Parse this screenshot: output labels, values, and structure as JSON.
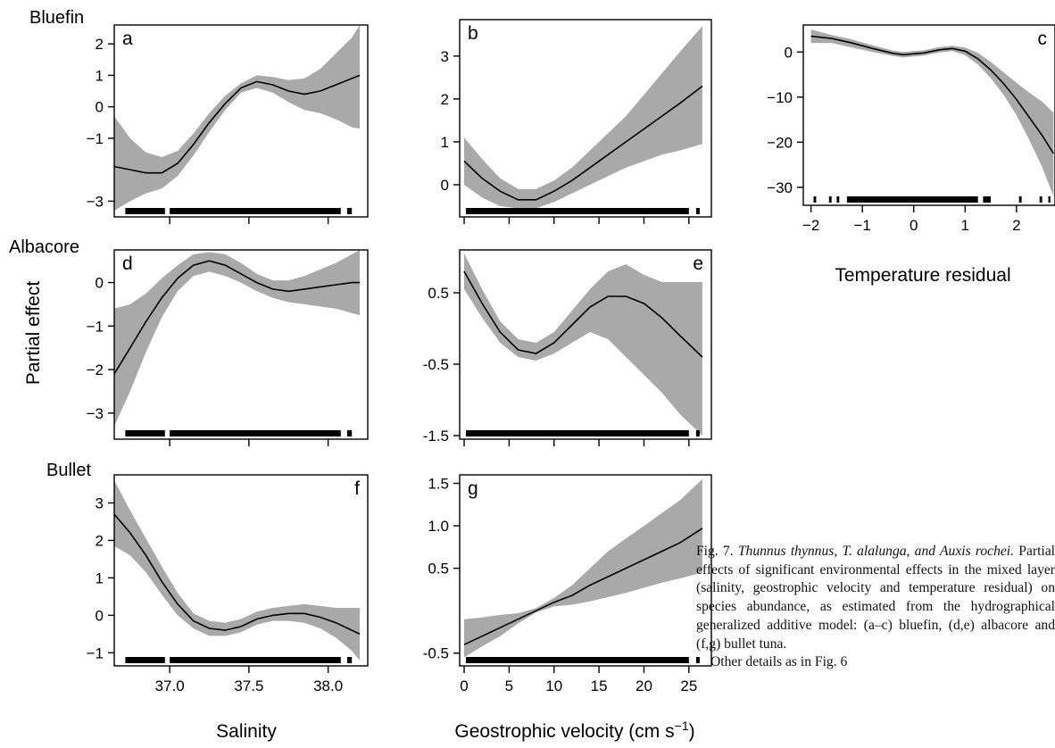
{
  "species_labels": {
    "bluefin": "Bluefin",
    "albacore": "Albacore",
    "bullet": "Bullet"
  },
  "shared_ylabel": "Partial effect",
  "x_axis_titles": {
    "salinity": "Salinity",
    "velocity_text": "Geostrophic velocity (cm s",
    "velocity_exp": "−1",
    "velocity_close": ")",
    "temperature": "Temperature residual"
  },
  "caption": {
    "fig_label": "Fig. 7. ",
    "species_names": "Thunnus thynnus, T. alalunga, and Auxis rochei.",
    "body": " Partial effects of significant environmental effects in the mixed layer (salinity, geostrophic velocity and temperature residual) on species abundance, as estimated from the hydrographical generalized additive model: (a–c) bluefin, (d,e) albacore and (f,g) bullet tuna.",
    "last_line": "Other details as in Fig. 6"
  },
  "colors": {
    "band": "#a9a9a9",
    "line": "#000000",
    "frame": "#000000"
  },
  "chart_data": [
    {
      "panel": "a",
      "type": "line",
      "species": "Bluefin",
      "variable": "Salinity",
      "xlim": [
        36.65,
        38.25
      ],
      "ylim": [
        -3.5,
        2.6
      ],
      "xticks": [
        37.0,
        37.5,
        38.0
      ],
      "xtick_labels": [],
      "yticks": [
        2,
        1,
        0,
        -1,
        -3
      ],
      "ytick_labels": [
        "2",
        "1",
        "0",
        "−1",
        "−3"
      ],
      "x": [
        36.65,
        36.75,
        36.85,
        36.95,
        37.05,
        37.15,
        37.25,
        37.35,
        37.45,
        37.55,
        37.65,
        37.75,
        37.85,
        37.95,
        38.05,
        38.15,
        38.2
      ],
      "fit": [
        -1.9,
        -2.0,
        -2.1,
        -2.1,
        -1.8,
        -1.2,
        -0.5,
        0.1,
        0.6,
        0.8,
        0.7,
        0.5,
        0.4,
        0.5,
        0.7,
        0.9,
        1.0
      ],
      "lower": [
        -3.3,
        -3.0,
        -2.75,
        -2.6,
        -2.2,
        -1.55,
        -0.8,
        -0.1,
        0.45,
        0.6,
        0.45,
        0.15,
        -0.1,
        -0.2,
        -0.4,
        -0.65,
        -0.7
      ],
      "upper": [
        -0.3,
        -1.0,
        -1.45,
        -1.6,
        -1.4,
        -0.85,
        -0.2,
        0.35,
        0.75,
        1.0,
        0.95,
        0.85,
        0.9,
        1.2,
        1.7,
        2.2,
        2.6
      ],
      "rug_segments": [
        [
          36.72,
          36.97
        ],
        [
          37.0,
          38.08
        ],
        [
          38.12,
          38.15
        ]
      ]
    },
    {
      "panel": "b",
      "type": "line",
      "species": "Bluefin",
      "variable": "Geostrophic velocity",
      "xlim": [
        -0.5,
        27.5
      ],
      "ylim": [
        -0.75,
        3.85
      ],
      "xticks": [
        0,
        5,
        10,
        15,
        20,
        25
      ],
      "xtick_labels": [],
      "yticks": [
        3,
        2,
        1,
        0
      ],
      "ytick_labels": [
        "3",
        "2",
        "1",
        "0"
      ],
      "x": [
        0,
        2,
        4,
        6,
        8,
        10,
        12,
        14,
        16,
        18,
        20,
        22,
        24,
        26.5
      ],
      "fit": [
        0.55,
        0.15,
        -0.15,
        -0.35,
        -0.35,
        -0.15,
        0.1,
        0.4,
        0.7,
        1.0,
        1.3,
        1.6,
        1.9,
        2.3
      ],
      "lower": [
        0.0,
        -0.3,
        -0.5,
        -0.55,
        -0.55,
        -0.4,
        -0.2,
        0.0,
        0.2,
        0.4,
        0.55,
        0.7,
        0.8,
        0.95
      ],
      "upper": [
        1.1,
        0.6,
        0.15,
        -0.1,
        -0.1,
        0.1,
        0.4,
        0.8,
        1.2,
        1.6,
        2.1,
        2.6,
        3.1,
        3.7
      ],
      "rug_segments": [
        [
          0.2,
          25.0
        ],
        [
          25.8,
          26.2
        ]
      ]
    },
    {
      "panel": "c",
      "type": "line",
      "species": "Bluefin",
      "variable": "Temperature residual",
      "xlim": [
        -2.15,
        2.75
      ],
      "ylim": [
        -34,
        6
      ],
      "xticks": [
        -2,
        -1,
        0,
        1,
        2
      ],
      "xtick_labels": [
        "−2",
        "−1",
        "0",
        "1",
        "2"
      ],
      "yticks": [
        0,
        -10,
        -20,
        -30
      ],
      "ytick_labels": [
        "0",
        "−10",
        "−20",
        "−30"
      ],
      "x": [
        -2.0,
        -1.6,
        -1.2,
        -0.8,
        -0.4,
        -0.2,
        0.2,
        0.5,
        0.75,
        1.0,
        1.25,
        1.5,
        1.75,
        2.0,
        2.25,
        2.5,
        2.72
      ],
      "fit": [
        3.5,
        3.0,
        2.0,
        0.8,
        -0.3,
        -0.6,
        -0.2,
        0.5,
        0.8,
        0.2,
        -1.5,
        -4.0,
        -7.0,
        -10.5,
        -14.5,
        -18.5,
        -22.5
      ],
      "lower": [
        2.0,
        2.0,
        1.0,
        0.0,
        -0.9,
        -1.2,
        -0.8,
        -0.1,
        0.2,
        -0.7,
        -2.8,
        -5.8,
        -9.5,
        -14.0,
        -19.5,
        -25.5,
        -32.0
      ],
      "upper": [
        5.0,
        3.8,
        2.8,
        1.5,
        0.3,
        0.0,
        0.4,
        1.1,
        1.4,
        1.0,
        -0.2,
        -2.2,
        -4.5,
        -6.8,
        -9.0,
        -11.0,
        -13.5
      ],
      "rug_segments": [
        [
          -1.95,
          -1.9
        ],
        [
          -1.65,
          -1.6
        ],
        [
          -1.5,
          -1.45
        ],
        [
          -1.3,
          1.25
        ],
        [
          1.35,
          1.5
        ],
        [
          2.05,
          2.1
        ],
        [
          2.45,
          2.5
        ],
        [
          2.62,
          2.66
        ]
      ]
    },
    {
      "panel": "d",
      "type": "line",
      "species": "Albacore",
      "variable": "Salinity",
      "xlim": [
        36.65,
        38.25
      ],
      "ylim": [
        -3.6,
        0.75
      ],
      "xticks": [
        37.0,
        37.5,
        38.0
      ],
      "xtick_labels": [],
      "yticks": [
        0,
        -1,
        -2,
        -3
      ],
      "ytick_labels": [
        "0",
        "−1",
        "−2",
        "−3"
      ],
      "x": [
        36.65,
        36.75,
        36.85,
        36.95,
        37.05,
        37.15,
        37.25,
        37.35,
        37.45,
        37.55,
        37.65,
        37.75,
        37.85,
        37.95,
        38.05,
        38.15,
        38.2
      ],
      "fit": [
        -2.1,
        -1.5,
        -0.9,
        -0.35,
        0.1,
        0.4,
        0.5,
        0.4,
        0.2,
        0.0,
        -0.15,
        -0.2,
        -0.15,
        -0.1,
        -0.05,
        0.0,
        0.0
      ],
      "lower": [
        -3.3,
        -2.5,
        -1.6,
        -0.8,
        -0.2,
        0.15,
        0.25,
        0.15,
        0.0,
        -0.2,
        -0.35,
        -0.45,
        -0.5,
        -0.55,
        -0.6,
        -0.7,
        -0.75
      ],
      "upper": [
        -0.6,
        -0.5,
        -0.25,
        0.1,
        0.4,
        0.65,
        0.7,
        0.65,
        0.45,
        0.2,
        0.05,
        0.05,
        0.15,
        0.3,
        0.45,
        0.65,
        0.75
      ],
      "rug_segments": [
        [
          36.72,
          36.97
        ],
        [
          37.0,
          38.08
        ],
        [
          38.12,
          38.15
        ]
      ]
    },
    {
      "panel": "e",
      "type": "line",
      "species": "Albacore",
      "variable": "Geostrophic velocity",
      "xlim": [
        -0.5,
        27.5
      ],
      "ylim": [
        -1.55,
        1.1
      ],
      "xticks": [
        0,
        5,
        10,
        15,
        20,
        25
      ],
      "xtick_labels": [],
      "yticks": [
        0.5,
        -0.5,
        -1.5
      ],
      "ytick_labels": [
        "0.5",
        "-0.5",
        "-1.5"
      ],
      "x": [
        0,
        2,
        4,
        6,
        8,
        10,
        12,
        14,
        16,
        18,
        20,
        22,
        24,
        26.5
      ],
      "fit": [
        0.8,
        0.35,
        -0.05,
        -0.3,
        -0.35,
        -0.2,
        0.05,
        0.3,
        0.45,
        0.45,
        0.35,
        0.15,
        -0.1,
        -0.4
      ],
      "lower": [
        0.55,
        0.15,
        -0.2,
        -0.4,
        -0.45,
        -0.35,
        -0.2,
        -0.05,
        -0.15,
        -0.4,
        -0.65,
        -0.9,
        -1.2,
        -1.5
      ],
      "upper": [
        1.05,
        0.55,
        0.1,
        -0.15,
        -0.2,
        -0.05,
        0.25,
        0.55,
        0.8,
        0.9,
        0.75,
        0.65,
        0.65,
        0.65
      ],
      "rug_segments": [
        [
          0.2,
          25.0
        ],
        [
          25.8,
          26.2
        ]
      ]
    },
    {
      "panel": "f",
      "type": "line",
      "species": "Bullet",
      "variable": "Salinity",
      "xlim": [
        36.65,
        38.25
      ],
      "ylim": [
        -1.35,
        3.75
      ],
      "xticks": [
        37.0,
        37.5,
        38.0
      ],
      "xtick_labels": [
        "37.0",
        "37.5",
        "38.0"
      ],
      "yticks": [
        3,
        2,
        1,
        0,
        -1
      ],
      "ytick_labels": [
        "3",
        "2",
        "1",
        "0",
        "−1"
      ],
      "x": [
        36.65,
        36.75,
        36.85,
        36.95,
        37.05,
        37.15,
        37.25,
        37.35,
        37.45,
        37.55,
        37.65,
        37.75,
        37.85,
        37.95,
        38.05,
        38.15,
        38.2
      ],
      "fit": [
        2.7,
        2.2,
        1.6,
        0.9,
        0.3,
        -0.15,
        -0.35,
        -0.4,
        -0.3,
        -0.1,
        0.0,
        0.05,
        0.05,
        -0.05,
        -0.2,
        -0.4,
        -0.5
      ],
      "lower": [
        1.85,
        1.6,
        1.15,
        0.55,
        0.0,
        -0.35,
        -0.55,
        -0.55,
        -0.45,
        -0.25,
        -0.15,
        -0.15,
        -0.2,
        -0.35,
        -0.6,
        -0.95,
        -1.2
      ],
      "upper": [
        3.6,
        2.8,
        2.05,
        1.3,
        0.6,
        0.05,
        -0.15,
        -0.2,
        -0.1,
        0.1,
        0.2,
        0.25,
        0.3,
        0.25,
        0.2,
        0.2,
        0.2
      ],
      "rug_segments": [
        [
          36.72,
          36.97
        ],
        [
          37.0,
          38.08
        ],
        [
          38.12,
          38.15
        ]
      ]
    },
    {
      "panel": "g",
      "type": "line",
      "species": "Bullet",
      "variable": "Geostrophic velocity",
      "xlim": [
        -0.5,
        27.5
      ],
      "ylim": [
        -0.65,
        1.6
      ],
      "xticks": [
        0,
        5,
        10,
        15,
        20,
        25
      ],
      "xtick_labels": [
        "0",
        "5",
        "10",
        "15",
        "20",
        "25"
      ],
      "yticks": [
        1.5,
        1.0,
        0.5,
        -0.5
      ],
      "ytick_labels": [
        "1.5",
        "1.0",
        "0.5",
        "-0.5"
      ],
      "x": [
        0,
        2,
        4,
        6,
        8,
        10,
        12,
        14,
        16,
        18,
        20,
        22,
        24,
        26.5
      ],
      "fit": [
        -0.4,
        -0.3,
        -0.2,
        -0.1,
        0.0,
        0.1,
        0.18,
        0.3,
        0.4,
        0.5,
        0.6,
        0.7,
        0.8,
        0.97
      ],
      "lower": [
        -0.55,
        -0.42,
        -0.3,
        -0.15,
        -0.02,
        0.05,
        0.07,
        0.11,
        0.16,
        0.21,
        0.27,
        0.33,
        0.38,
        0.45
      ],
      "upper": [
        -0.1,
        -0.08,
        -0.05,
        -0.03,
        0.03,
        0.15,
        0.3,
        0.5,
        0.7,
        0.85,
        1.0,
        1.15,
        1.3,
        1.55
      ],
      "rug_segments": [
        [
          0.2,
          25.0
        ],
        [
          25.8,
          26.2
        ]
      ]
    }
  ]
}
